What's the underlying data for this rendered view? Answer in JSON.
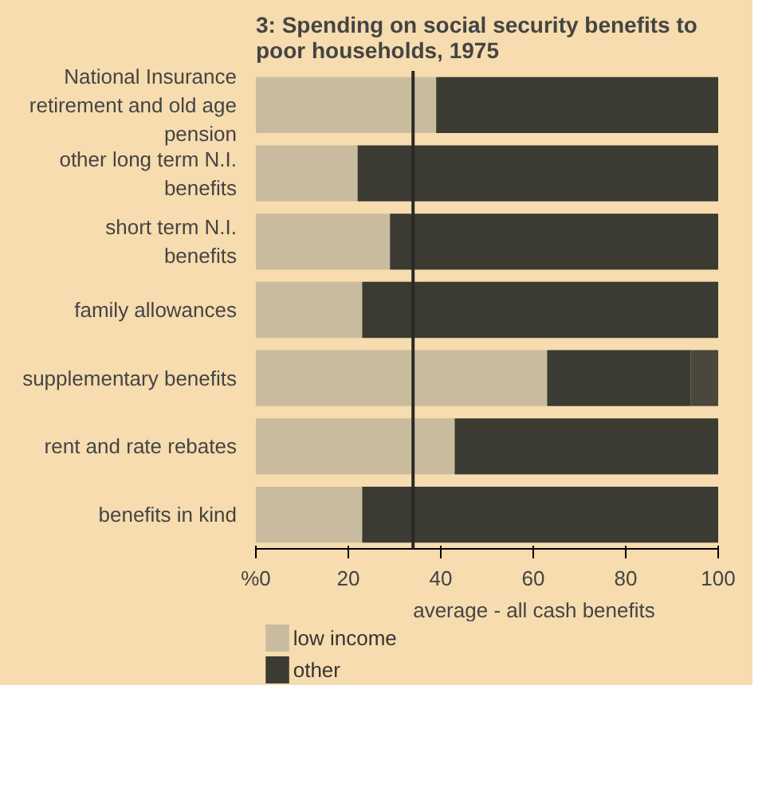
{
  "chart_data": {
    "type": "bar",
    "orientation": "horizontal",
    "stacked": true,
    "title": "3: Spending on social security benefits to poor households, 1975",
    "categories": [
      "National Insurance retirement and old age pension",
      "other long term N.I. benefits",
      "short term N.I. benefits",
      "family allowances",
      "supplementary benefits",
      "rent and rate rebates",
      "benefits in kind"
    ],
    "series": [
      {
        "name": "low income",
        "color": "#c9bc9e",
        "values": [
          39,
          22,
          29,
          23,
          63,
          43,
          23
        ]
      },
      {
        "name": "other",
        "color": "#3b3a33",
        "values": [
          61,
          78,
          71,
          77,
          31,
          57,
          77
        ]
      },
      {
        "color": "#4a473c",
        "values": [
          null,
          null,
          null,
          null,
          6,
          null,
          null
        ]
      }
    ],
    "xlim": [
      0,
      100
    ],
    "xticks": [
      {
        "value": 0,
        "label": "%0"
      },
      20,
      40,
      60,
      80,
      100
    ],
    "ref_lines": [
      {
        "axis": "x",
        "value": 34,
        "label": "average - all cash benefits",
        "color": "#2a2a25"
      }
    ],
    "legend": "bottom left"
  }
}
